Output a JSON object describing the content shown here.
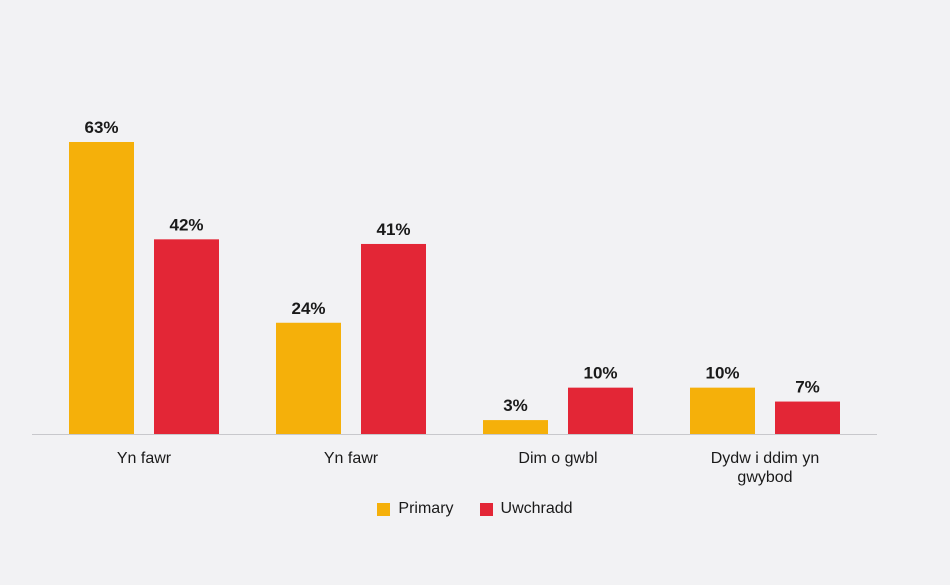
{
  "chart_data": {
    "type": "bar",
    "categories": [
      [
        "Yn fawr"
      ],
      [
        "Yn fawr"
      ],
      [
        "Dim o gwbl"
      ],
      [
        "Dydw i ddim yn",
        "gwybod"
      ]
    ],
    "series": [
      {
        "name": "Primary",
        "color": "#f5b00a",
        "values": [
          63,
          24,
          3,
          10
        ]
      },
      {
        "name": "Uwchradd",
        "color": "#e32636",
        "values": [
          42,
          41,
          10,
          7
        ]
      }
    ],
    "value_suffix": "%",
    "ylim": [
      0,
      70
    ],
    "grid": false,
    "legend_position": "bottom-center",
    "title": "",
    "xlabel": "",
    "ylabel": ""
  },
  "axis_color": "#c8c8cc"
}
